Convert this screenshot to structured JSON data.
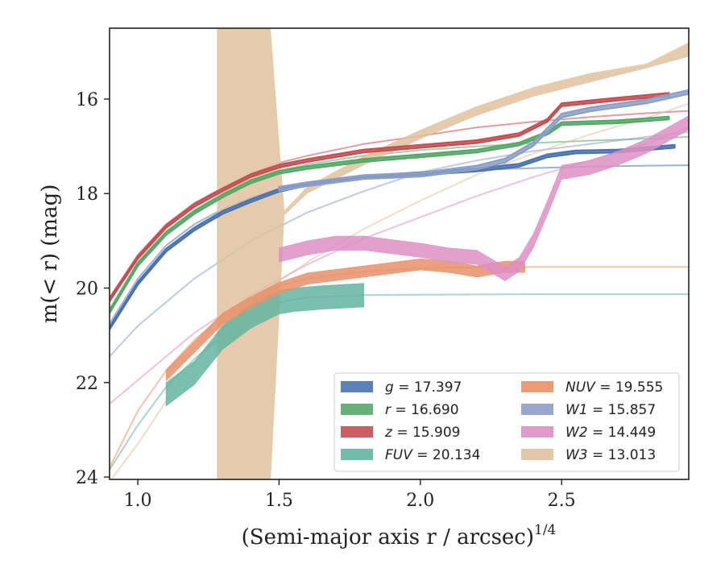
{
  "chart_data": {
    "type": "line",
    "xlabel": "(Semi-major axis r / arcsec)",
    "xlabel_sup": "1/4",
    "ylabel": "m(< r) (mag)",
    "xlim": [
      0.9,
      2.95
    ],
    "ylim": [
      24.05,
      14.5
    ],
    "y_inverted": true,
    "x_ticks": [
      1.0,
      1.5,
      2.0,
      2.5
    ],
    "x_tick_labels": [
      "1.0",
      "1.5",
      "2.0",
      "2.5"
    ],
    "y_ticks": [
      16,
      18,
      20,
      22,
      24
    ],
    "y_tick_labels": [
      "16",
      "18",
      "20",
      "22",
      "24"
    ],
    "grid": false,
    "legend_position": "bottom-right",
    "series": [
      {
        "name": "g = 17.397",
        "color": "#4c72b0",
        "band": {
          "x": [
            0.9,
            1.0,
            1.1,
            1.2,
            1.3,
            1.4,
            1.5,
            1.6,
            1.8,
            2.0,
            2.2,
            2.35,
            2.45,
            2.55,
            2.7,
            2.9
          ],
          "y": [
            20.85,
            19.9,
            19.2,
            18.75,
            18.4,
            18.15,
            17.93,
            17.8,
            17.65,
            17.58,
            17.5,
            17.4,
            17.2,
            17.12,
            17.1,
            17.0
          ],
          "half_width": 0.03
        },
        "model": {
          "x": [
            0.9,
            1.0,
            1.1,
            1.2,
            1.3,
            1.4,
            1.5,
            1.6,
            1.8,
            2.0,
            2.2,
            2.4,
            2.6,
            2.8,
            2.95
          ],
          "y": [
            20.75,
            19.8,
            19.1,
            18.65,
            18.33,
            18.08,
            17.9,
            17.77,
            17.63,
            17.55,
            17.5,
            17.46,
            17.43,
            17.41,
            17.4
          ]
        }
      },
      {
        "name": "r = 16.690",
        "color": "#55a868",
        "band": {
          "x": [
            0.9,
            1.0,
            1.1,
            1.2,
            1.3,
            1.4,
            1.5,
            1.6,
            1.8,
            2.0,
            2.2,
            2.35,
            2.45,
            2.5,
            2.7,
            2.88
          ],
          "y": [
            20.5,
            19.5,
            18.85,
            18.4,
            18.05,
            17.75,
            17.55,
            17.45,
            17.3,
            17.2,
            17.1,
            16.95,
            16.72,
            16.52,
            16.48,
            16.4
          ],
          "half_width": 0.03
        },
        "model": {
          "x": [
            0.9,
            1.0,
            1.1,
            1.2,
            1.3,
            1.4,
            1.5,
            1.6,
            1.8,
            2.0,
            2.2,
            2.4,
            2.6,
            2.8,
            2.95
          ],
          "y": [
            20.45,
            19.45,
            18.8,
            18.35,
            18.0,
            17.72,
            17.52,
            17.38,
            17.2,
            17.08,
            17.0,
            16.93,
            16.88,
            16.84,
            16.8
          ]
        }
      },
      {
        "name": "z = 15.909",
        "color": "#c44e52",
        "band": {
          "x": [
            0.9,
            1.0,
            1.1,
            1.2,
            1.3,
            1.4,
            1.5,
            1.6,
            1.8,
            2.0,
            2.2,
            2.35,
            2.45,
            2.5,
            2.7,
            2.88
          ],
          "y": [
            20.25,
            19.35,
            18.7,
            18.25,
            17.92,
            17.62,
            17.42,
            17.3,
            17.1,
            17.0,
            16.9,
            16.75,
            16.45,
            16.12,
            16.0,
            15.9
          ],
          "half_width": 0.03
        },
        "model": {
          "x": [
            0.9,
            1.0,
            1.1,
            1.2,
            1.3,
            1.4,
            1.5,
            1.6,
            1.8,
            2.0,
            2.2,
            2.4,
            2.6,
            2.8,
            2.95
          ],
          "y": [
            20.2,
            19.3,
            18.65,
            18.2,
            17.88,
            17.58,
            17.35,
            17.2,
            16.95,
            16.78,
            16.6,
            16.48,
            16.38,
            16.3,
            16.25
          ]
        }
      },
      {
        "name": "FUV = 20.134",
        "color": "#64b5a0",
        "band": {
          "x": [
            1.1,
            1.2,
            1.3,
            1.4,
            1.5,
            1.55,
            1.65,
            1.8
          ],
          "y": [
            22.25,
            21.8,
            21.05,
            20.6,
            20.3,
            20.25,
            20.2,
            20.15
          ],
          "half_width": 0.25
        },
        "model": {
          "x": [
            0.9,
            1.0,
            1.1,
            1.2,
            1.3,
            1.4,
            1.5,
            1.6,
            1.8,
            2.0,
            2.4,
            2.95
          ],
          "y": [
            23.85,
            22.9,
            22.1,
            21.5,
            21.0,
            20.6,
            20.3,
            20.2,
            20.15,
            20.14,
            20.13,
            20.13
          ]
        }
      },
      {
        "name": "NUV = 19.555",
        "color": "#e8916a",
        "band": {
          "x": [
            1.1,
            1.2,
            1.3,
            1.4,
            1.5,
            1.6,
            1.8,
            2.0,
            2.1,
            2.2,
            2.3,
            2.37
          ],
          "y": [
            21.85,
            21.25,
            20.65,
            20.3,
            20.0,
            19.8,
            19.65,
            19.5,
            19.55,
            19.65,
            19.55,
            19.55
          ],
          "half_width": 0.12
        },
        "model": {
          "x": [
            0.9,
            1.0,
            1.1,
            1.2,
            1.3,
            1.4,
            1.5,
            1.6,
            1.8,
            2.0,
            2.2,
            2.4,
            2.95
          ],
          "y": [
            23.8,
            22.6,
            21.75,
            21.1,
            20.6,
            20.25,
            19.95,
            19.8,
            19.65,
            19.58,
            19.56,
            19.555,
            19.555
          ]
        }
      },
      {
        "name": "W1 = 15.857",
        "color": "#8c9fc7",
        "band": {
          "x": [
            1.5,
            1.6,
            1.8,
            2.0,
            2.2,
            2.3,
            2.4,
            2.5,
            2.6,
            2.8,
            2.95
          ],
          "y": [
            17.9,
            17.8,
            17.65,
            17.6,
            17.45,
            17.3,
            16.95,
            16.35,
            16.22,
            16.05,
            15.85
          ],
          "half_width": 0.04
        },
        "model": {
          "x": [
            0.9,
            1.0,
            1.2,
            1.4,
            1.6,
            1.8,
            2.0,
            2.2,
            2.4,
            2.6,
            2.8,
            2.95
          ],
          "y": [
            21.45,
            20.8,
            19.8,
            19.0,
            18.4,
            17.95,
            17.55,
            17.3,
            17.1,
            16.95,
            16.8,
            16.7
          ]
        }
      },
      {
        "name": "W2 = 14.449",
        "color": "#dd8fc3",
        "band": {
          "x": [
            1.5,
            1.6,
            1.7,
            1.8,
            2.0,
            2.1,
            2.2,
            2.3,
            2.35,
            2.4,
            2.45,
            2.5,
            2.6,
            2.7,
            2.8,
            2.95
          ],
          "y": [
            19.3,
            19.15,
            19.05,
            19.05,
            19.2,
            19.3,
            19.35,
            19.7,
            19.5,
            19.0,
            18.3,
            17.55,
            17.45,
            17.25,
            17.0,
            16.5
          ],
          "half_width": 0.15
        },
        "model": {
          "x": [
            0.9,
            1.0,
            1.2,
            1.4,
            1.6,
            1.8,
            2.0,
            2.2,
            2.4,
            2.6,
            2.8,
            2.95
          ],
          "y": [
            22.45,
            21.95,
            20.95,
            20.15,
            19.5,
            18.95,
            18.5,
            18.05,
            17.65,
            17.3,
            16.95,
            16.6
          ]
        }
      },
      {
        "name": "W3 = 13.013",
        "color": "#dfc29e",
        "band_poly": {
          "x": [
            1.28,
            1.28,
            1.47,
            1.52,
            1.6,
            1.8,
            2.0,
            2.2,
            2.4,
            2.6,
            2.8,
            2.95,
            2.95,
            2.8,
            2.6,
            2.4,
            2.2,
            2.0,
            1.8,
            1.6,
            1.52,
            1.47,
            1.28
          ],
          "y": [
            24.1,
            14.5,
            14.5,
            18.45,
            18.0,
            17.4,
            16.85,
            16.35,
            15.95,
            15.65,
            15.35,
            15.1,
            14.8,
            15.25,
            15.45,
            15.75,
            16.15,
            16.65,
            17.2,
            17.85,
            18.35,
            24.1,
            24.1
          ]
        },
        "model": {
          "x": [
            0.9,
            1.0,
            1.1,
            1.2,
            1.3,
            1.4,
            1.5,
            1.6,
            1.8,
            2.0,
            2.2,
            2.4,
            2.6,
            2.8,
            2.95
          ],
          "y": [
            24.1,
            23.3,
            22.4,
            21.6,
            20.9,
            20.35,
            19.85,
            19.45,
            18.75,
            18.15,
            17.6,
            17.15,
            16.75,
            16.4,
            16.1
          ]
        }
      }
    ],
    "legend": [
      {
        "label": "g = 17.397"
      },
      {
        "label": "NUV = 19.555"
      },
      {
        "label": "r = 16.690"
      },
      {
        "label": "W1 = 15.857"
      },
      {
        "label": "z = 15.909"
      },
      {
        "label": "W2 = 14.449"
      },
      {
        "label": "FUV = 20.134"
      },
      {
        "label": "W3 = 13.013"
      }
    ]
  }
}
